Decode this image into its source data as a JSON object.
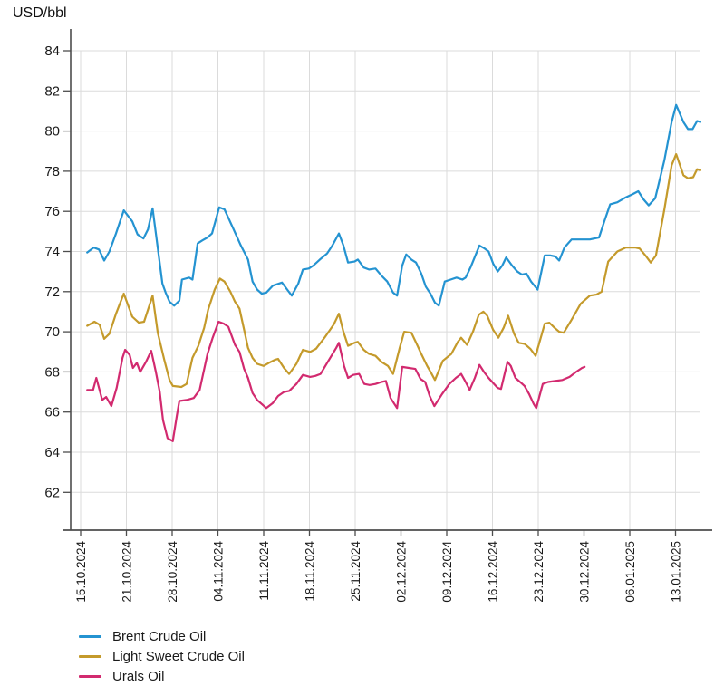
{
  "chart_data": {
    "type": "line",
    "title": "",
    "ylabel": "USD/bbl",
    "xlabel": "",
    "grid": true,
    "legend_position": "bottom-left",
    "ylim": [
      61,
      85
    ],
    "y_ticks": [
      84,
      82,
      80,
      78,
      76,
      74,
      72,
      70,
      68,
      66,
      64,
      62
    ],
    "x_unit": "days since 15.10.2024, ticks weekly",
    "x_tick_labels": [
      "15.10.2024",
      "21.10.2024",
      "28.10.2024",
      "04.11.2024",
      "11.11.2024",
      "18.11.2024",
      "25.11.2024",
      "02.12.2024",
      "09.12.2024",
      "16.12.2024",
      "23.12.2024",
      "30.12.2024",
      "06.01.2025",
      "13.01.2025"
    ],
    "series": [
      {
        "name": "Brent Crude Oil",
        "color": "#2493d1",
        "points": [
          [
            1,
            73.95
          ],
          [
            2,
            74.2
          ],
          [
            2.8,
            74.1
          ],
          [
            3.6,
            73.55
          ],
          [
            4.4,
            74.0
          ],
          [
            5.4,
            74.9
          ],
          [
            6.6,
            76.05
          ],
          [
            7.9,
            75.5
          ],
          [
            8.7,
            74.85
          ],
          [
            9.6,
            74.65
          ],
          [
            10.3,
            75.1
          ],
          [
            11,
            76.15
          ],
          [
            11.9,
            73.9
          ],
          [
            12.5,
            72.4
          ],
          [
            13,
            71.95
          ],
          [
            13.6,
            71.5
          ],
          [
            14.3,
            71.3
          ],
          [
            15.1,
            71.55
          ],
          [
            15.5,
            72.6
          ],
          [
            16.6,
            72.7
          ],
          [
            17.1,
            72.6
          ],
          [
            17.9,
            74.4
          ],
          [
            18.6,
            74.55
          ],
          [
            19.4,
            74.7
          ],
          [
            20.1,
            74.9
          ],
          [
            21.2,
            76.2
          ],
          [
            22,
            76.1
          ],
          [
            22.7,
            75.6
          ],
          [
            23.4,
            75.1
          ],
          [
            24.5,
            74.3
          ],
          [
            25.6,
            73.6
          ],
          [
            26.3,
            72.5
          ],
          [
            27,
            72.1
          ],
          [
            27.7,
            71.9
          ],
          [
            28.4,
            71.95
          ],
          [
            29.4,
            72.3
          ],
          [
            30.8,
            72.45
          ],
          [
            31.6,
            72.1
          ],
          [
            32.3,
            71.8
          ],
          [
            33.3,
            72.4
          ],
          [
            34,
            73.1
          ],
          [
            34.9,
            73.15
          ],
          [
            35.6,
            73.3
          ],
          [
            36.6,
            73.6
          ],
          [
            37.7,
            73.9
          ],
          [
            38.5,
            74.3
          ],
          [
            39.5,
            74.9
          ],
          [
            40.2,
            74.3
          ],
          [
            40.9,
            73.45
          ],
          [
            41.9,
            73.5
          ],
          [
            42.4,
            73.6
          ],
          [
            43.3,
            73.2
          ],
          [
            44.1,
            73.1
          ],
          [
            45.1,
            73.15
          ],
          [
            46,
            72.8
          ],
          [
            46.9,
            72.5
          ],
          [
            47.8,
            71.95
          ],
          [
            48.4,
            71.8
          ],
          [
            49.2,
            73.3
          ],
          [
            49.8,
            73.85
          ],
          [
            50.6,
            73.6
          ],
          [
            51.3,
            73.45
          ],
          [
            52.1,
            72.9
          ],
          [
            52.8,
            72.25
          ],
          [
            53.5,
            71.9
          ],
          [
            54.2,
            71.45
          ],
          [
            54.8,
            71.3
          ],
          [
            55.7,
            72.5
          ],
          [
            56.6,
            72.6
          ],
          [
            57.5,
            72.7
          ],
          [
            58.4,
            72.6
          ],
          [
            58.9,
            72.7
          ],
          [
            59.7,
            73.25
          ],
          [
            61,
            74.3
          ],
          [
            61.8,
            74.15
          ],
          [
            62.4,
            74.0
          ],
          [
            63.1,
            73.4
          ],
          [
            63.8,
            73.0
          ],
          [
            64.5,
            73.3
          ],
          [
            65.1,
            73.7
          ],
          [
            66,
            73.3
          ],
          [
            66.8,
            73.0
          ],
          [
            67.5,
            72.85
          ],
          [
            68.2,
            72.9
          ],
          [
            68.9,
            72.5
          ],
          [
            69.9,
            72.1
          ],
          [
            71,
            73.8
          ],
          [
            71.9,
            73.8
          ],
          [
            72.6,
            73.75
          ],
          [
            73.2,
            73.55
          ],
          [
            74,
            74.2
          ],
          [
            75.1,
            74.6
          ],
          [
            76.5,
            74.6
          ],
          [
            77.9,
            74.6
          ],
          [
            79.3,
            74.7
          ],
          [
            80.1,
            75.5
          ],
          [
            81,
            76.35
          ],
          [
            82.1,
            76.45
          ],
          [
            83.4,
            76.7
          ],
          [
            84.4,
            76.85
          ],
          [
            85.3,
            77.0
          ],
          [
            86.1,
            76.6
          ],
          [
            86.9,
            76.3
          ],
          [
            87.9,
            76.65
          ],
          [
            89.3,
            78.55
          ],
          [
            90.4,
            80.45
          ],
          [
            91.1,
            81.3
          ],
          [
            92.2,
            80.45
          ],
          [
            92.9,
            80.1
          ],
          [
            93.6,
            80.1
          ],
          [
            94.3,
            80.5
          ],
          [
            94.8,
            80.45
          ]
        ]
      },
      {
        "name": "Light Sweet Crude Oil",
        "color": "#c49a2b",
        "points": [
          [
            1,
            70.3
          ],
          [
            2.1,
            70.5
          ],
          [
            2.9,
            70.35
          ],
          [
            3.6,
            69.65
          ],
          [
            4.4,
            69.9
          ],
          [
            5.4,
            70.9
          ],
          [
            6.6,
            71.9
          ],
          [
            7.9,
            70.75
          ],
          [
            8.9,
            70.45
          ],
          [
            9.7,
            70.5
          ],
          [
            11,
            71.8
          ],
          [
            11.8,
            69.95
          ],
          [
            12.8,
            68.6
          ],
          [
            13.6,
            67.6
          ],
          [
            14.1,
            67.3
          ],
          [
            15.4,
            67.25
          ],
          [
            16.2,
            67.4
          ],
          [
            17.1,
            68.7
          ],
          [
            18,
            69.3
          ],
          [
            18.9,
            70.2
          ],
          [
            19.5,
            71.1
          ],
          [
            20.5,
            72.1
          ],
          [
            21.3,
            72.65
          ],
          [
            22,
            72.5
          ],
          [
            22.9,
            72.0
          ],
          [
            23.6,
            71.5
          ],
          [
            24.3,
            71.15
          ],
          [
            25,
            70.1
          ],
          [
            25.6,
            69.2
          ],
          [
            26.3,
            68.7
          ],
          [
            27,
            68.4
          ],
          [
            28,
            68.3
          ],
          [
            28.8,
            68.45
          ],
          [
            29.7,
            68.6
          ],
          [
            30.2,
            68.65
          ],
          [
            31.1,
            68.2
          ],
          [
            31.9,
            67.9
          ],
          [
            33,
            68.4
          ],
          [
            34,
            69.1
          ],
          [
            35.1,
            69.0
          ],
          [
            36,
            69.15
          ],
          [
            37.3,
            69.7
          ],
          [
            38.7,
            70.35
          ],
          [
            39.5,
            70.9
          ],
          [
            40.2,
            70.0
          ],
          [
            40.9,
            69.3
          ],
          [
            41.9,
            69.45
          ],
          [
            42.4,
            69.5
          ],
          [
            43.3,
            69.1
          ],
          [
            44.1,
            68.9
          ],
          [
            45.1,
            68.8
          ],
          [
            46,
            68.5
          ],
          [
            47,
            68.3
          ],
          [
            47.8,
            67.9
          ],
          [
            48.8,
            69.2
          ],
          [
            49.5,
            70.0
          ],
          [
            50.6,
            69.95
          ],
          [
            51.4,
            69.4
          ],
          [
            52.1,
            68.9
          ],
          [
            53,
            68.3
          ],
          [
            53.7,
            67.9
          ],
          [
            54.2,
            67.6
          ],
          [
            55.4,
            68.55
          ],
          [
            56.7,
            68.9
          ],
          [
            57.7,
            69.5
          ],
          [
            58.2,
            69.7
          ],
          [
            59.1,
            69.35
          ],
          [
            60,
            70.0
          ],
          [
            60.9,
            70.85
          ],
          [
            61.6,
            71.0
          ],
          [
            62.2,
            70.8
          ],
          [
            63.1,
            70.1
          ],
          [
            63.9,
            69.7
          ],
          [
            64.7,
            70.2
          ],
          [
            65.4,
            70.8
          ],
          [
            66.3,
            69.9
          ],
          [
            67,
            69.45
          ],
          [
            67.9,
            69.4
          ],
          [
            68.8,
            69.15
          ],
          [
            69.6,
            68.8
          ],
          [
            71,
            70.4
          ],
          [
            71.7,
            70.45
          ],
          [
            72.5,
            70.2
          ],
          [
            73.2,
            70.0
          ],
          [
            73.9,
            69.95
          ],
          [
            75.1,
            70.6
          ],
          [
            76.5,
            71.4
          ],
          [
            77.9,
            71.8
          ],
          [
            78.9,
            71.85
          ],
          [
            79.7,
            72.0
          ],
          [
            80.7,
            73.5
          ],
          [
            82.1,
            74.0
          ],
          [
            83.4,
            74.2
          ],
          [
            84.8,
            74.2
          ],
          [
            85.5,
            74.15
          ],
          [
            86.4,
            73.8
          ],
          [
            87.2,
            73.45
          ],
          [
            88,
            73.8
          ],
          [
            89.3,
            76.1
          ],
          [
            90.4,
            78.3
          ],
          [
            91.1,
            78.85
          ],
          [
            92.2,
            77.8
          ],
          [
            92.9,
            77.65
          ],
          [
            93.7,
            77.7
          ],
          [
            94.3,
            78.1
          ],
          [
            94.8,
            78.05
          ]
        ]
      },
      {
        "name": "Urals Oil",
        "color": "#d22a6f",
        "points": [
          [
            1,
            67.1
          ],
          [
            1.9,
            67.1
          ],
          [
            2.4,
            67.7
          ],
          [
            3.3,
            66.6
          ],
          [
            3.9,
            66.75
          ],
          [
            4.7,
            66.3
          ],
          [
            5.5,
            67.2
          ],
          [
            6.4,
            68.7
          ],
          [
            6.8,
            69.1
          ],
          [
            7.5,
            68.85
          ],
          [
            8,
            68.2
          ],
          [
            8.6,
            68.45
          ],
          [
            9.1,
            68.0
          ],
          [
            10,
            68.5
          ],
          [
            10.8,
            69.05
          ],
          [
            11.5,
            68.0
          ],
          [
            12.1,
            67.0
          ],
          [
            12.6,
            65.6
          ],
          [
            13.3,
            64.7
          ],
          [
            14.1,
            64.55
          ],
          [
            14.7,
            65.8
          ],
          [
            15.1,
            66.55
          ],
          [
            16.2,
            66.6
          ],
          [
            17.3,
            66.7
          ],
          [
            18.2,
            67.1
          ],
          [
            19.4,
            68.9
          ],
          [
            20.2,
            69.7
          ],
          [
            21.1,
            70.5
          ],
          [
            21.9,
            70.4
          ],
          [
            22.6,
            70.25
          ],
          [
            23.6,
            69.35
          ],
          [
            24.3,
            69.0
          ],
          [
            25,
            68.15
          ],
          [
            25.6,
            67.7
          ],
          [
            26.3,
            66.95
          ],
          [
            27,
            66.6
          ],
          [
            27.7,
            66.4
          ],
          [
            28.4,
            66.2
          ],
          [
            29.4,
            66.45
          ],
          [
            30.2,
            66.8
          ],
          [
            31.1,
            67.0
          ],
          [
            31.9,
            67.05
          ],
          [
            33,
            67.4
          ],
          [
            34,
            67.85
          ],
          [
            35.1,
            67.75
          ],
          [
            35.9,
            67.8
          ],
          [
            36.7,
            67.9
          ],
          [
            38,
            68.6
          ],
          [
            39.1,
            69.2
          ],
          [
            39.5,
            69.45
          ],
          [
            40.3,
            68.3
          ],
          [
            40.9,
            67.7
          ],
          [
            41.7,
            67.85
          ],
          [
            42.6,
            67.9
          ],
          [
            43.4,
            67.4
          ],
          [
            44.2,
            67.35
          ],
          [
            45.1,
            67.4
          ],
          [
            46,
            67.5
          ],
          [
            46.7,
            67.55
          ],
          [
            47.4,
            66.7
          ],
          [
            48.4,
            66.2
          ],
          [
            49.2,
            68.25
          ],
          [
            50.2,
            68.2
          ],
          [
            51.2,
            68.15
          ],
          [
            52,
            67.65
          ],
          [
            52.7,
            67.5
          ],
          [
            53.4,
            66.8
          ],
          [
            54.1,
            66.3
          ],
          [
            55.3,
            66.9
          ],
          [
            56.4,
            67.4
          ],
          [
            57.4,
            67.7
          ],
          [
            58.2,
            67.9
          ],
          [
            58.9,
            67.5
          ],
          [
            59.5,
            67.1
          ],
          [
            60.3,
            67.7
          ],
          [
            61,
            68.35
          ],
          [
            61.7,
            68.0
          ],
          [
            62.4,
            67.7
          ],
          [
            63.1,
            67.45
          ],
          [
            63.8,
            67.2
          ],
          [
            64.3,
            67.15
          ],
          [
            65.3,
            68.5
          ],
          [
            65.8,
            68.3
          ],
          [
            66.5,
            67.7
          ],
          [
            67.4,
            67.45
          ],
          [
            67.9,
            67.3
          ],
          [
            68.6,
            66.9
          ],
          [
            69.3,
            66.4
          ],
          [
            69.7,
            66.2
          ],
          [
            70.7,
            67.4
          ],
          [
            71.5,
            67.5
          ],
          [
            72.6,
            67.55
          ],
          [
            73.7,
            67.6
          ],
          [
            74.8,
            67.75
          ],
          [
            75.8,
            68.0
          ],
          [
            76.7,
            68.2
          ],
          [
            77.1,
            68.25
          ]
        ]
      }
    ]
  }
}
